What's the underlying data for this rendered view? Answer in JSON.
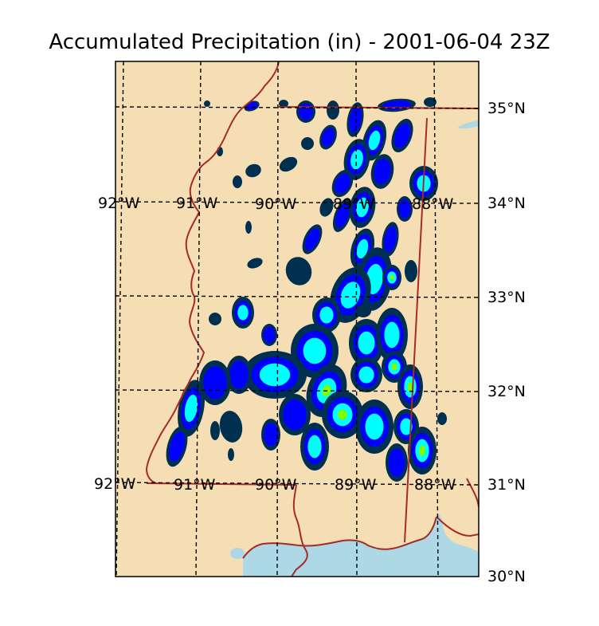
{
  "title": "Accumulated Precipitation (in) - 2001-06-04 23Z",
  "map": {
    "colors": {
      "land": "#f5deb3",
      "water": "#add8e6",
      "border": "#a52a2a",
      "grid": "#000000",
      "precip_levels": [
        "#003050",
        "#0000ff",
        "#00ffff",
        "#7fff00",
        "#ffff00"
      ]
    },
    "lat_labels": [
      "35°N",
      "34°N",
      "33°N",
      "32°N",
      "31°N",
      "30°N"
    ],
    "lon_labels_upper": [
      "92°W",
      "91°W",
      "90°W",
      "89°W",
      "88°W"
    ],
    "lon_labels_lower": [
      "92°W",
      "91°W",
      "90°W",
      "89°W",
      "88°W"
    ]
  }
}
